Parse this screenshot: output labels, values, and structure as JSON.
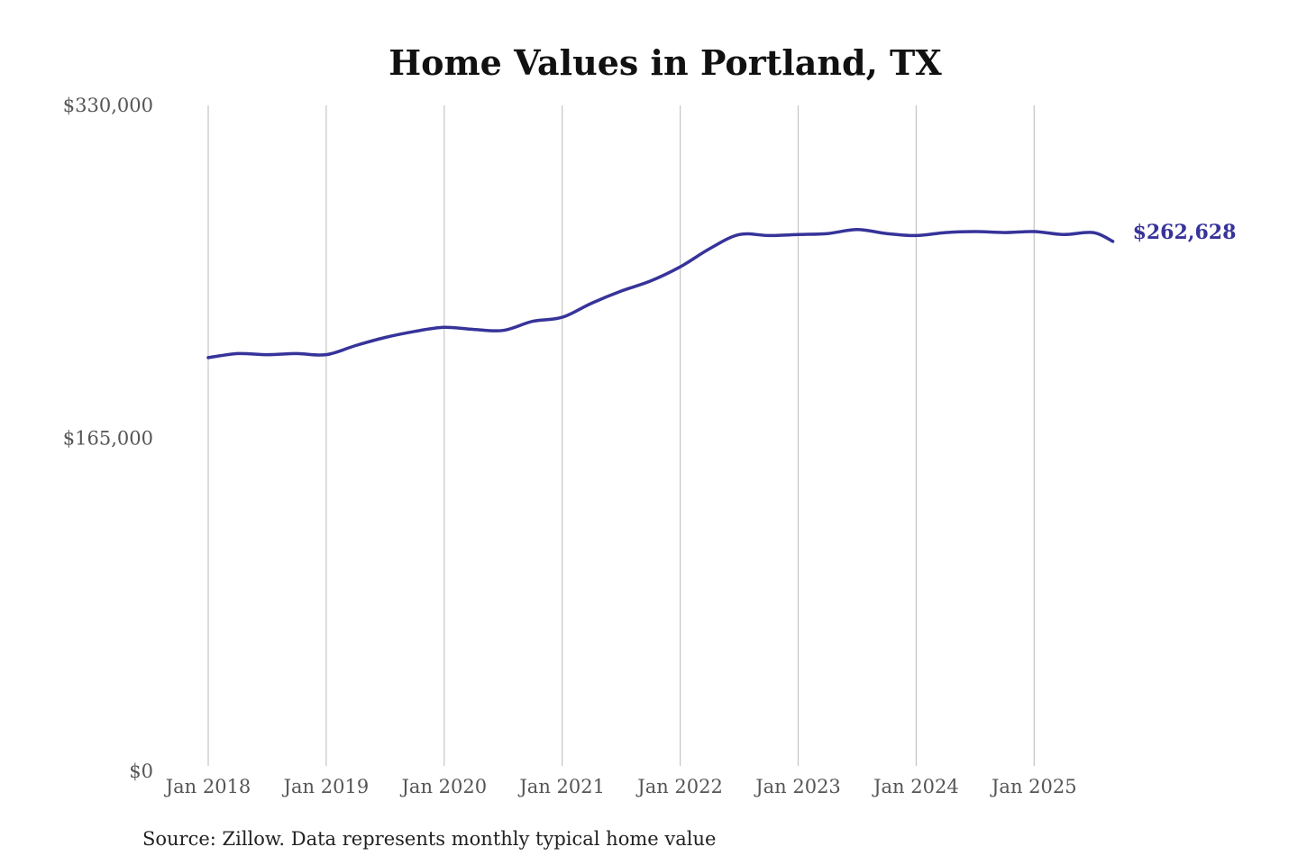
{
  "chart_data": {
    "type": "line",
    "title": "Home Values in Portland, TX",
    "xlabel": "",
    "ylabel": "",
    "source": "Source: Zillow. Data represents monthly typical home value",
    "ylim": [
      0,
      330000
    ],
    "yticks": [
      {
        "value": 0,
        "label": "$0"
      },
      {
        "value": 165000,
        "label": "$165,000"
      },
      {
        "value": 330000,
        "label": "$330,000"
      }
    ],
    "xticks": [
      {
        "value": "2018-01",
        "label": "Jan 2018"
      },
      {
        "value": "2019-01",
        "label": "Jan 2019"
      },
      {
        "value": "2020-01",
        "label": "Jan 2020"
      },
      {
        "value": "2021-01",
        "label": "Jan 2021"
      },
      {
        "value": "2022-01",
        "label": "Jan 2022"
      },
      {
        "value": "2023-01",
        "label": "Jan 2023"
      },
      {
        "value": "2024-01",
        "label": "Jan 2024"
      },
      {
        "value": "2025-01",
        "label": "Jan 2025"
      }
    ],
    "grid": {
      "x": true,
      "y": false
    },
    "line_color": "#36339a",
    "end_label": "$262,628",
    "series": [
      {
        "x": [
          "2018-01",
          "2018-04",
          "2018-07",
          "2018-10",
          "2019-01",
          "2019-04",
          "2019-07",
          "2019-10",
          "2020-01",
          "2020-04",
          "2020-07",
          "2020-10",
          "2021-01",
          "2021-04",
          "2021-07",
          "2021-10",
          "2022-01",
          "2022-04",
          "2022-07",
          "2022-10",
          "2023-01",
          "2023-04",
          "2023-07",
          "2023-10",
          "2024-01",
          "2024-04",
          "2024-07",
          "2024-10",
          "2025-01",
          "2025-04",
          "2025-07",
          "2025-09"
        ],
        "values": [
          205000,
          207000,
          206500,
          207000,
          206500,
          211000,
          215000,
          218000,
          220000,
          219000,
          218500,
          223000,
          225000,
          232000,
          238000,
          243000,
          250000,
          259000,
          266000,
          265500,
          266000,
          266500,
          268500,
          266500,
          265500,
          267000,
          267500,
          267000,
          267500,
          266000,
          267000,
          262628
        ]
      }
    ]
  }
}
